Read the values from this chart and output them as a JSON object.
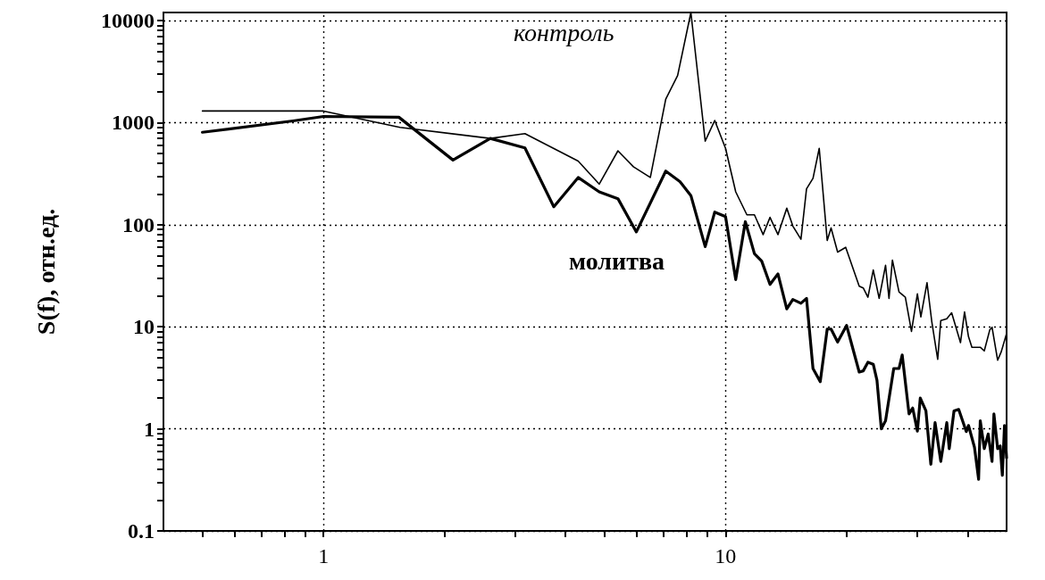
{
  "chart_data": {
    "type": "line",
    "ylabel": "S(f), отн.ед.",
    "log": "xy",
    "grid": true,
    "legend": false,
    "marker": "none",
    "line_style": "solid",
    "xlim": [
      0.4,
      50
    ],
    "ylim": [
      0.1,
      12000
    ],
    "xticks": [
      {
        "value": 0.5,
        "label": null
      },
      {
        "value": 0.6,
        "label": null
      },
      {
        "value": 0.7,
        "label": null
      },
      {
        "value": 0.8,
        "label": null
      },
      {
        "value": 0.9,
        "label": null
      },
      1,
      {
        "value": 2,
        "label": null
      },
      {
        "value": 3,
        "label": null
      },
      {
        "value": 4,
        "label": null
      },
      {
        "value": 5,
        "label": null
      },
      {
        "value": 6,
        "label": null
      },
      {
        "value": 7,
        "label": null
      },
      {
        "value": 8,
        "label": null
      },
      {
        "value": 9,
        "label": null
      },
      10,
      {
        "value": 20,
        "label": null
      },
      {
        "value": 30,
        "label": null
      },
      {
        "value": 40,
        "label": null
      }
    ],
    "yticks": [
      0.1,
      {
        "value": 0.2,
        "label": null
      },
      {
        "value": 0.3,
        "label": null
      },
      {
        "value": 0.4,
        "label": null
      },
      {
        "value": 0.5,
        "label": null
      },
      {
        "value": 0.6,
        "label": null
      },
      {
        "value": 0.7,
        "label": null
      },
      {
        "value": 0.8,
        "label": null
      },
      {
        "value": 0.9,
        "label": null
      },
      1,
      {
        "value": 2,
        "label": null
      },
      {
        "value": 3,
        "label": null
      },
      {
        "value": 4,
        "label": null
      },
      {
        "value": 5,
        "label": null
      },
      {
        "value": 6,
        "label": null
      },
      {
        "value": 7,
        "label": null
      },
      {
        "value": 8,
        "label": null
      },
      {
        "value": 9,
        "label": null
      },
      10,
      {
        "value": 20,
        "label": null
      },
      {
        "value": 30,
        "label": null
      },
      {
        "value": 40,
        "label": null
      },
      {
        "value": 50,
        "label": null
      },
      {
        "value": 60,
        "label": null
      },
      {
        "value": 70,
        "label": null
      },
      {
        "value": 80,
        "label": null
      },
      {
        "value": 90,
        "label": null
      },
      100,
      {
        "value": 200,
        "label": null
      },
      {
        "value": 300,
        "label": null
      },
      {
        "value": 400,
        "label": null
      },
      {
        "value": 500,
        "label": null
      },
      {
        "value": 600,
        "label": null
      },
      {
        "value": 700,
        "label": null
      },
      {
        "value": 800,
        "label": null
      },
      {
        "value": 900,
        "label": null
      },
      1000,
      {
        "value": 2000,
        "label": null
      },
      {
        "value": 3000,
        "label": null
      },
      {
        "value": 4000,
        "label": null
      },
      {
        "value": 5000,
        "label": null
      },
      {
        "value": 6000,
        "label": null
      },
      {
        "value": 7000,
        "label": null
      },
      {
        "value": 8000,
        "label": null
      },
      {
        "value": 9000,
        "label": null
      },
      10000
    ],
    "series": [
      {
        "name": "контроль",
        "color": "#000000",
        "x": [
          0.5,
          1.0,
          1.55,
          2.6,
          3.17,
          4.3,
          4.85,
          5.4,
          5.9,
          6.5,
          7.1,
          7.6,
          8.2,
          8.9,
          9.4,
          10,
          10.6,
          11.3,
          11.8,
          12.4,
          12.9,
          13.5,
          14.2,
          14.7,
          15.4,
          15.9,
          16.5,
          17.1,
          17.9,
          18.3,
          19,
          19.9,
          21.5,
          22,
          22.6,
          23.3,
          24.1,
          25,
          25.5,
          26,
          27,
          28,
          29,
          30,
          30.6,
          31.7,
          32.6,
          33.7,
          34.3,
          35.5,
          36.5,
          38.4,
          39.3,
          40.2,
          41,
          43,
          44,
          45.4,
          46,
          47.5,
          48.5,
          50
        ],
        "values": [
          1300,
          1300,
          900,
          700,
          780,
          420,
          250,
          530,
          370,
          290,
          1700,
          2900,
          12000,
          660,
          1050,
          560,
          210,
          125,
          125,
          80,
          118,
          80,
          145,
          97,
          72,
          225,
          285,
          560,
          70,
          93,
          54,
          60,
          25,
          24,
          19.5,
          36,
          19,
          40,
          19,
          45,
          22,
          19.5,
          9,
          21,
          12.5,
          27,
          11,
          4.8,
          11.5,
          12,
          13.7,
          7,
          14,
          8,
          6.3,
          6.3,
          5.8,
          9.3,
          9.9,
          4.7,
          5.7,
          8.6
        ]
      },
      {
        "name": "молитва",
        "color": "#000000",
        "x": [
          0.5,
          0.84,
          1.0,
          1.54,
          2.1,
          2.6,
          3.17,
          3.74,
          4.3,
          4.85,
          5.4,
          6.0,
          7.1,
          7.7,
          8.2,
          8.9,
          9.4,
          10,
          10.6,
          11.2,
          11.8,
          12.3,
          12.9,
          13.5,
          14.2,
          14.7,
          15.4,
          15.9,
          16.5,
          17.2,
          17.9,
          18.3,
          19,
          20,
          21.5,
          22,
          22.6,
          23.3,
          23.8,
          24.4,
          25,
          26.2,
          27,
          27.5,
          28.6,
          29.2,
          30,
          30.5,
          31.5,
          32.4,
          33.2,
          34.3,
          35.5,
          36,
          37,
          38,
          39.7,
          40.2,
          41.6,
          42.6,
          43,
          44,
          45,
          46,
          46.5,
          47.5,
          48.2,
          48.8,
          49.4,
          50
        ],
        "values": [
          805,
          1040,
          1150,
          1130,
          430,
          700,
          565,
          150,
          290,
          210,
          180,
          85,
          335,
          265,
          193,
          61,
          133,
          120,
          29,
          107,
          52,
          44,
          26,
          33,
          15,
          18.5,
          17,
          19,
          3.9,
          2.9,
          9.5,
          9.5,
          7.1,
          10.3,
          3.6,
          3.7,
          4.5,
          4.3,
          3.0,
          1.0,
          1.2,
          3.9,
          3.9,
          5.3,
          1.4,
          1.6,
          0.95,
          2.0,
          1.5,
          0.45,
          1.15,
          0.48,
          1.15,
          0.64,
          1.5,
          1.55,
          0.94,
          1.08,
          0.66,
          0.32,
          1.2,
          0.64,
          0.89,
          0.48,
          1.4,
          0.64,
          0.68,
          0.35,
          1.08,
          0.52
        ]
      }
    ]
  }
}
